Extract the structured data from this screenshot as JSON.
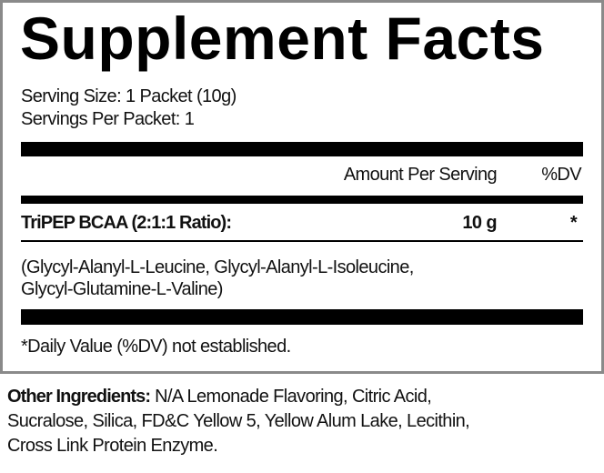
{
  "label": {
    "title": "Supplement Facts",
    "serving_size": "Serving Size: 1 Packet (10g)",
    "servings_per": "Servings Per Packet: 1",
    "header": {
      "amount": "Amount Per Serving",
      "dv": "%DV"
    },
    "rows": [
      {
        "name": "TriPEP BCAA (2:1:1 Ratio):",
        "amount": "10 g",
        "dv": "*"
      }
    ],
    "description_lines": [
      "(Glycyl-Alanyl-L-Leucine, Glycyl-Alanyl-L-Isoleucine,",
      "Glycyl-Glutamine-L-Valine)"
    ],
    "footnote": "*Daily Value (%DV) not established."
  },
  "other_ingredients": {
    "heading": "Other Ingredients:",
    "lines": [
      " N/A Lemonade Flavoring, Citric Acid,",
      "Sucralose, Silica, FD&C Yellow 5, Yellow Alum Lake, Lecithin,",
      "Cross Link Protein Enzyme."
    ]
  }
}
